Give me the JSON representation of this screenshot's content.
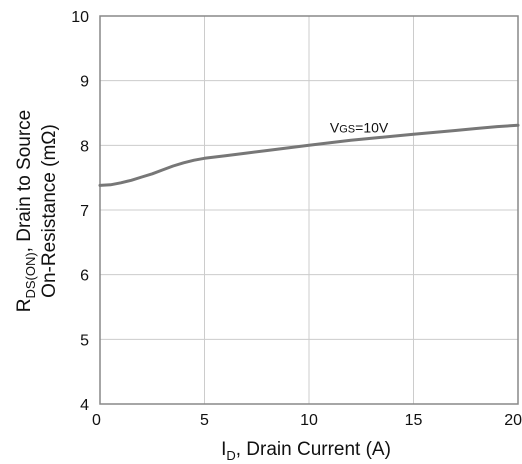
{
  "chart_data": {
    "type": "line",
    "xlabel": {
      "main": "I",
      "sub": "D",
      "rest": ", Drain Current (A)"
    },
    "ylabel": {
      "line1_main": "R",
      "line1_sub": "DS(ON)",
      "line1_rest": ", Drain to Source",
      "line2": "On-Resistance (mΩ)"
    },
    "xlim": [
      0,
      20
    ],
    "ylim": [
      4,
      10
    ],
    "x_ticks": [
      0,
      5,
      10,
      15,
      20
    ],
    "y_ticks": [
      4,
      5,
      6,
      7,
      8,
      9,
      10
    ],
    "grid": true,
    "annotations": [
      {
        "text_main": "V",
        "text_sub": "GS",
        "text_rest": "=10V",
        "x": 11.0,
        "y": 8.2
      }
    ],
    "series": [
      {
        "x": [
          0,
          0.5,
          1,
          1.5,
          2,
          2.5,
          3,
          3.5,
          4,
          4.5,
          5,
          6,
          7,
          8,
          9,
          10,
          11,
          12,
          13,
          14,
          15,
          16,
          17,
          18,
          19,
          20
        ],
        "values": [
          7.38,
          7.39,
          7.42,
          7.46,
          7.51,
          7.56,
          7.62,
          7.68,
          7.73,
          7.77,
          7.8,
          7.84,
          7.88,
          7.92,
          7.96,
          8.0,
          8.04,
          8.08,
          8.11,
          8.14,
          8.17,
          8.2,
          8.23,
          8.26,
          8.29,
          8.31
        ]
      }
    ],
    "colors": {
      "line": "#777777",
      "grid": "#cccccc",
      "frame": "#888888"
    }
  }
}
